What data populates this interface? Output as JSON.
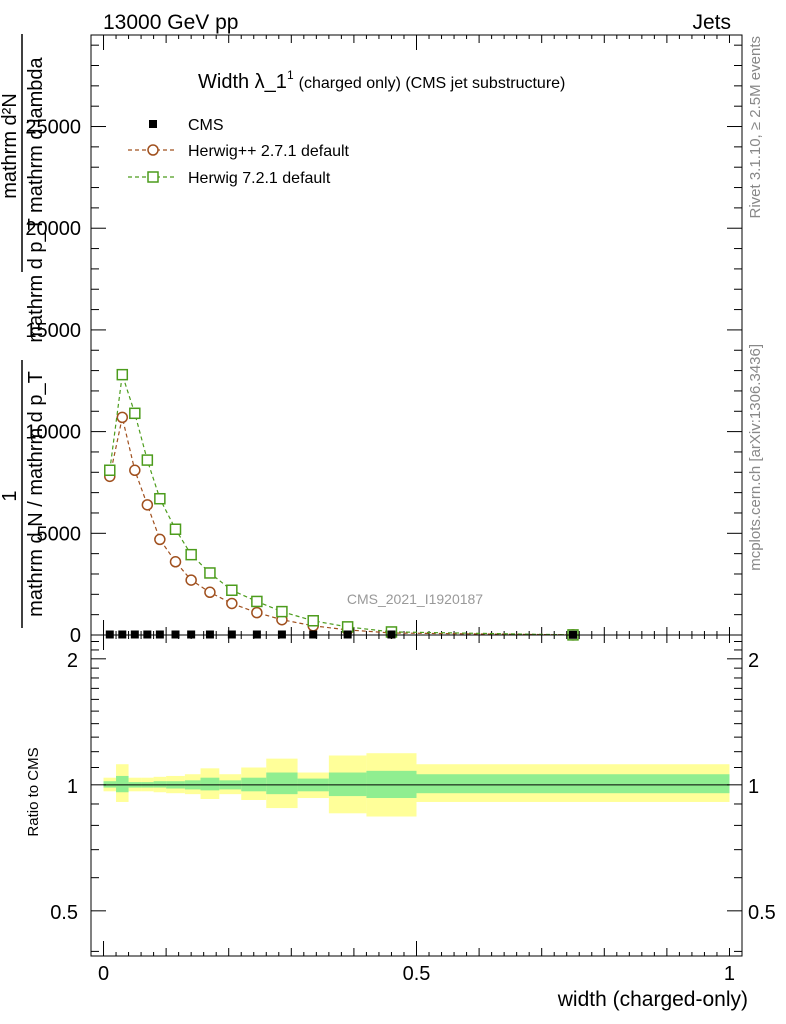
{
  "header": {
    "left": "13000 GeV pp",
    "right": "Jets"
  },
  "side_labels": {
    "rivet": "Rivet 3.1.10, ≥ 2.5M events",
    "mcplots": "mcplots.cern.ch [arXiv:1306.3436]"
  },
  "watermark": "CMS_2021_I1920187",
  "chart_data": [
    {
      "type": "line",
      "title_main": "Width λ_1",
      "title_sup": "1",
      "title_rest": "(charged only) (CMS jet substructure)",
      "ylabel_num": "mathrm d²N",
      "ylabel_den": "mathrm d p_T mathrm d lambda",
      "ylabel_prefix_num": "1",
      "ylabel_prefix_den": "mathrm d N / mathrm d p_T",
      "xlim": [
        -0.02,
        1.02
      ],
      "ylim": [
        0,
        29500
      ],
      "yticks": [
        0,
        5000,
        10000,
        15000,
        20000,
        25000
      ],
      "ytick_labels": [
        "0",
        "5000",
        "10000",
        "15000",
        "20000",
        "25000"
      ],
      "legend_position": "top-left",
      "series": [
        {
          "name": "CMS",
          "color": "#000000",
          "marker": "filled-square",
          "x": [
            0.01,
            0.03,
            0.05,
            0.07,
            0.09,
            0.115,
            0.14,
            0.17,
            0.205,
            0.245,
            0.285,
            0.335,
            0.39,
            0.46,
            0.75
          ],
          "y": [
            25,
            25,
            25,
            25,
            25,
            25,
            25,
            25,
            25,
            25,
            25,
            25,
            25,
            25,
            10
          ]
        },
        {
          "name": "Herwig++ 2.7.1 default",
          "color": "#a0501e",
          "marker": "open-circle",
          "x": [
            0.01,
            0.03,
            0.05,
            0.07,
            0.09,
            0.115,
            0.14,
            0.17,
            0.205,
            0.245,
            0.285,
            0.335,
            0.39,
            0.46,
            0.75
          ],
          "y": [
            7800,
            10700,
            8100,
            6400,
            4700,
            3600,
            2700,
            2100,
            1550,
            1100,
            750,
            450,
            250,
            100,
            5
          ]
        },
        {
          "name": "Herwig 7.2.1 default",
          "color": "#4c9c1c",
          "marker": "open-square",
          "x": [
            0.01,
            0.03,
            0.05,
            0.07,
            0.09,
            0.115,
            0.14,
            0.17,
            0.205,
            0.245,
            0.285,
            0.335,
            0.39,
            0.46,
            0.75
          ],
          "y": [
            8100,
            12800,
            10900,
            8600,
            6700,
            5200,
            3950,
            3050,
            2200,
            1650,
            1150,
            700,
            400,
            150,
            5
          ]
        }
      ]
    },
    {
      "type": "area",
      "ylabel": "Ratio to CMS",
      "xlabel": "width (charged-only)",
      "xlim": [
        -0.02,
        1.02
      ],
      "ylim": [
        0.39,
        2.28
      ],
      "yticks": [
        0.5,
        1,
        2
      ],
      "ytick_labels": [
        "0.5",
        "1",
        "2"
      ],
      "xticks": [
        0,
        0.5,
        1
      ],
      "xtick_labels": [
        "0",
        "0.5",
        "1"
      ],
      "reference_line": 1,
      "bands": [
        {
          "x0": 0.0,
          "x1": 0.02,
          "inner": [
            0.985,
            1.02
          ],
          "outer": [
            0.965,
            1.04
          ]
        },
        {
          "x0": 0.02,
          "x1": 0.04,
          "inner": [
            0.96,
            1.05
          ],
          "outer": [
            0.91,
            1.12
          ]
        },
        {
          "x0": 0.04,
          "x1": 0.06,
          "inner": [
            0.985,
            1.015
          ],
          "outer": [
            0.965,
            1.04
          ]
        },
        {
          "x0": 0.06,
          "x1": 0.08,
          "inner": [
            0.985,
            1.015
          ],
          "outer": [
            0.965,
            1.04
          ]
        },
        {
          "x0": 0.08,
          "x1": 0.1,
          "inner": [
            0.985,
            1.02
          ],
          "outer": [
            0.96,
            1.045
          ]
        },
        {
          "x0": 0.1,
          "x1": 0.13,
          "inner": [
            0.98,
            1.02
          ],
          "outer": [
            0.955,
            1.05
          ]
        },
        {
          "x0": 0.13,
          "x1": 0.155,
          "inner": [
            0.975,
            1.025
          ],
          "outer": [
            0.95,
            1.06
          ]
        },
        {
          "x0": 0.155,
          "x1": 0.185,
          "inner": [
            0.97,
            1.04
          ],
          "outer": [
            0.925,
            1.095
          ]
        },
        {
          "x0": 0.185,
          "x1": 0.22,
          "inner": [
            0.975,
            1.025
          ],
          "outer": [
            0.95,
            1.06
          ]
        },
        {
          "x0": 0.22,
          "x1": 0.26,
          "inner": [
            0.965,
            1.04
          ],
          "outer": [
            0.92,
            1.1
          ]
        },
        {
          "x0": 0.26,
          "x1": 0.31,
          "inner": [
            0.95,
            1.07
          ],
          "outer": [
            0.88,
            1.155
          ]
        },
        {
          "x0": 0.31,
          "x1": 0.36,
          "inner": [
            0.965,
            1.035
          ],
          "outer": [
            0.93,
            1.07
          ]
        },
        {
          "x0": 0.36,
          "x1": 0.42,
          "inner": [
            0.94,
            1.07
          ],
          "outer": [
            0.855,
            1.175
          ]
        },
        {
          "x0": 0.42,
          "x1": 0.5,
          "inner": [
            0.93,
            1.08
          ],
          "outer": [
            0.84,
            1.19
          ]
        },
        {
          "x0": 0.5,
          "x1": 1.0,
          "inner": [
            0.955,
            1.06
          ],
          "outer": [
            0.91,
            1.12
          ]
        }
      ],
      "band_colors": {
        "inner": "#90ee90",
        "outer": "#ffff99"
      }
    }
  ]
}
